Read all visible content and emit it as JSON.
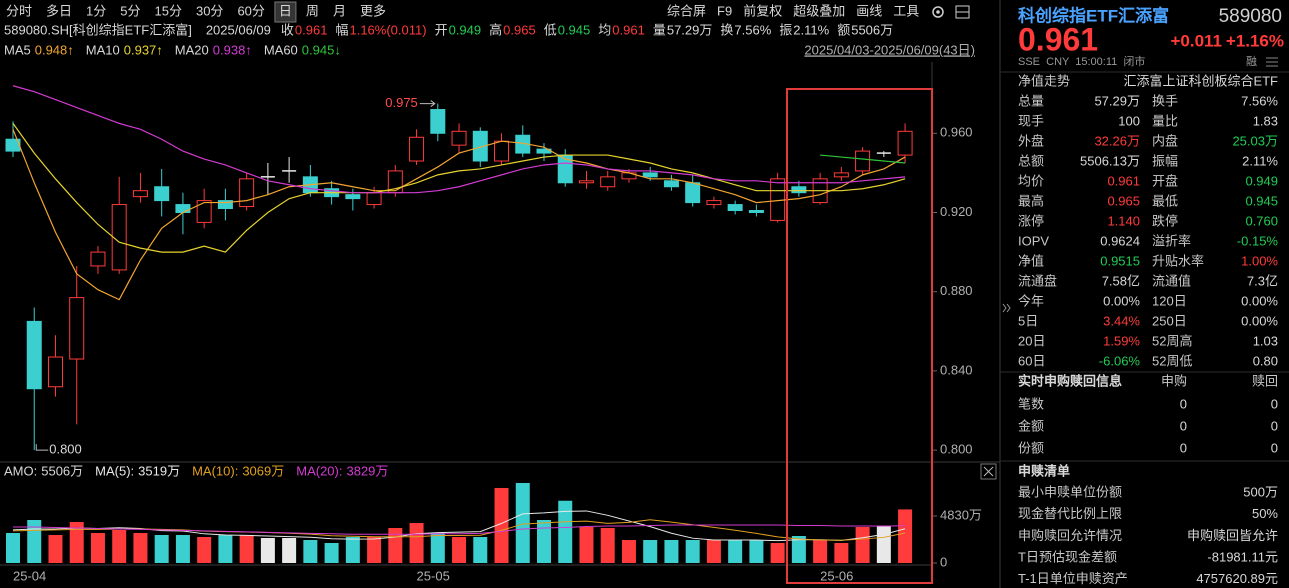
{
  "toolbar": {
    "tabs": [
      {
        "label": "分时"
      },
      {
        "label": "多日"
      },
      {
        "label": "1分"
      },
      {
        "label": "5分"
      },
      {
        "label": "15分"
      },
      {
        "label": "30分"
      },
      {
        "label": "60分"
      },
      {
        "label": "日",
        "active": true
      },
      {
        "label": "周"
      },
      {
        "label": "月"
      },
      {
        "label": "更多"
      }
    ],
    "tools": [
      "综合屏",
      "F9",
      "前复权",
      "超级叠加",
      "画线",
      "工具"
    ]
  },
  "info": {
    "symbol": "589080.SH[科创综指ETF汇添富]",
    "date": "2025/06/09",
    "fields": [
      {
        "label": "收",
        "value": "0.961",
        "color": "#ff3b3b"
      },
      {
        "label": "幅",
        "value": "1.16%(0.011)",
        "color": "#ff3b3b"
      },
      {
        "label": "开",
        "value": "0.949",
        "color": "#22cc55"
      },
      {
        "label": "高",
        "value": "0.965",
        "color": "#ff3b3b"
      },
      {
        "label": "低",
        "value": "0.945",
        "color": "#22cc55"
      },
      {
        "label": "均",
        "value": "0.961",
        "color": "#ff3b3b"
      },
      {
        "label": "量",
        "value": "57.29万",
        "color": "#d8d8d8"
      },
      {
        "label": "换",
        "value": "7.56%",
        "color": "#d8d8d8"
      },
      {
        "label": "振",
        "value": "2.11%",
        "color": "#d8d8d8"
      },
      {
        "label": "额",
        "value": "5506万",
        "color": "#d8d8d8"
      }
    ]
  },
  "chart_data": [
    {
      "type": "candlestick",
      "range_label": "2025/04/03-2025/06/09(43日)",
      "up_color": "#ff3b3b",
      "down_color": "#3ccfcf",
      "flat_color": "#e8e8e8",
      "ohlc": [
        [
          0.957,
          0.966,
          0.948,
          0.951
        ],
        [
          0.865,
          0.872,
          0.8,
          0.831
        ],
        [
          0.832,
          0.858,
          0.827,
          0.847
        ],
        [
          0.846,
          0.893,
          0.813,
          0.877
        ],
        [
          0.893,
          0.903,
          0.889,
          0.9
        ],
        [
          0.891,
          0.938,
          0.889,
          0.924
        ],
        [
          0.928,
          0.94,
          0.925,
          0.931
        ],
        [
          0.933,
          0.942,
          0.918,
          0.926
        ],
        [
          0.924,
          0.93,
          0.909,
          0.92
        ],
        [
          0.915,
          0.932,
          0.912,
          0.926
        ],
        [
          0.926,
          0.932,
          0.916,
          0.922
        ],
        [
          0.923,
          0.94,
          0.921,
          0.937
        ],
        [
          0.938,
          0.945,
          0.929,
          0.938
        ],
        [
          0.941,
          0.948,
          0.935,
          0.941
        ],
        [
          0.938,
          0.944,
          0.928,
          0.93
        ],
        [
          0.932,
          0.936,
          0.924,
          0.928
        ],
        [
          0.929,
          0.932,
          0.921,
          0.927
        ],
        [
          0.924,
          0.933,
          0.922,
          0.93
        ],
        [
          0.93,
          0.944,
          0.928,
          0.941
        ],
        [
          0.946,
          0.962,
          0.944,
          0.958
        ],
        [
          0.972,
          0.975,
          0.956,
          0.96
        ],
        [
          0.954,
          0.965,
          0.95,
          0.961
        ],
        [
          0.961,
          0.963,
          0.943,
          0.946
        ],
        [
          0.946,
          0.96,
          0.944,
          0.956
        ],
        [
          0.959,
          0.964,
          0.948,
          0.95
        ],
        [
          0.952,
          0.955,
          0.946,
          0.95
        ],
        [
          0.949,
          0.952,
          0.933,
          0.935
        ],
        [
          0.935,
          0.941,
          0.932,
          0.936
        ],
        [
          0.933,
          0.941,
          0.931,
          0.938
        ],
        [
          0.937,
          0.942,
          0.935,
          0.94
        ],
        [
          0.94,
          0.943,
          0.936,
          0.938
        ],
        [
          0.936,
          0.939,
          0.931,
          0.933
        ],
        [
          0.935,
          0.939,
          0.923,
          0.925
        ],
        [
          0.924,
          0.928,
          0.922,
          0.926
        ],
        [
          0.924,
          0.926,
          0.919,
          0.921
        ],
        [
          0.921,
          0.924,
          0.918,
          0.92
        ],
        [
          0.916,
          0.94,
          0.915,
          0.937
        ],
        [
          0.933,
          0.936,
          0.928,
          0.93
        ],
        [
          0.925,
          0.94,
          0.924,
          0.937
        ],
        [
          0.938,
          0.943,
          0.936,
          0.94
        ],
        [
          0.941,
          0.953,
          0.939,
          0.951
        ],
        [
          0.95,
          0.951,
          0.948,
          0.95
        ],
        [
          0.949,
          0.965,
          0.945,
          0.961
        ]
      ],
      "high_label": "0.975",
      "low_label": "0.800",
      "series": [
        {
          "name": "MA5",
          "legend_label": "0.948↑",
          "color": "#f2a530",
          "values": [
            0.962,
            0.935,
            0.91,
            0.889,
            0.881,
            0.876,
            0.896,
            0.912,
            0.92,
            0.925,
            0.925,
            0.926,
            0.929,
            0.933,
            0.934,
            0.935,
            0.933,
            0.931,
            0.931,
            0.937,
            0.943,
            0.95,
            0.953,
            0.956,
            0.955,
            0.953,
            0.947,
            0.945,
            0.942,
            0.94,
            0.937,
            0.937,
            0.935,
            0.932,
            0.929,
            0.925,
            0.926,
            0.927,
            0.929,
            0.933,
            0.939,
            0.942,
            0.948
          ]
        },
        {
          "name": "MA10",
          "legend_label": "0.937↑",
          "color": "#e6d42e",
          "values": [
            0.965,
            0.95,
            0.937,
            0.925,
            0.914,
            0.905,
            0.902,
            0.9,
            0.9,
            0.903,
            0.9,
            0.911,
            0.92,
            0.927,
            0.93,
            0.93,
            0.93,
            0.93,
            0.932,
            0.935,
            0.939,
            0.941,
            0.942,
            0.944,
            0.946,
            0.948,
            0.949,
            0.949,
            0.949,
            0.947,
            0.945,
            0.942,
            0.94,
            0.937,
            0.934,
            0.931,
            0.931,
            0.931,
            0.931,
            0.931,
            0.932,
            0.934,
            0.937
          ]
        },
        {
          "name": "MA20",
          "legend_label": "0.938↑",
          "color": "#d23cd2",
          "values": [
            0.984,
            0.981,
            0.977,
            0.973,
            0.969,
            0.965,
            0.962,
            0.957,
            0.951,
            0.947,
            0.944,
            0.94,
            0.936,
            0.934,
            0.932,
            0.931,
            0.93,
            0.93,
            0.93,
            0.93,
            0.931,
            0.933,
            0.936,
            0.939,
            0.942,
            0.944,
            0.945,
            0.944,
            0.942,
            0.941,
            0.941,
            0.94,
            0.939,
            0.937,
            0.936,
            0.936,
            0.935,
            0.935,
            0.935,
            0.935,
            0.936,
            0.937,
            0.938
          ]
        },
        {
          "name": "MA60",
          "legend_label": "0.945↓",
          "color": "#2fc43a",
          "values": [
            null,
            null,
            null,
            null,
            null,
            null,
            null,
            null,
            null,
            null,
            null,
            null,
            null,
            null,
            null,
            null,
            null,
            null,
            null,
            null,
            null,
            null,
            null,
            null,
            null,
            null,
            null,
            null,
            null,
            null,
            null,
            null,
            null,
            null,
            null,
            null,
            null,
            null,
            0.949,
            0.948,
            0.947,
            0.946,
            0.945
          ]
        }
      ],
      "ylim": [
        0.795,
        0.996
      ],
      "yticks": [
        {
          "value": 0.96,
          "label": "0.960"
        },
        {
          "value": 0.92,
          "label": "0.920"
        },
        {
          "value": 0.88,
          "label": "0.880"
        },
        {
          "value": 0.84,
          "label": "0.840"
        },
        {
          "value": 0.8,
          "label": "0.800"
        }
      ]
    },
    {
      "type": "bar",
      "name": "AMO:",
      "legend_label": "5506万",
      "categories": [
        "25-04",
        null,
        null,
        null,
        null,
        null,
        null,
        null,
        null,
        null,
        null,
        null,
        null,
        null,
        null,
        null,
        null,
        null,
        null,
        "25-05",
        null,
        null,
        null,
        null,
        null,
        null,
        null,
        null,
        null,
        null,
        null,
        null,
        null,
        null,
        null,
        null,
        null,
        null,
        "25-06",
        null,
        null,
        null,
        null
      ],
      "values": [
        3084,
        4420,
        2878,
        4215,
        3084,
        3392,
        3084,
        2878,
        2878,
        2673,
        2878,
        2878,
        2570,
        2570,
        2364,
        2056,
        2673,
        2673,
        3598,
        4112,
        3084,
        2673,
        2673,
        7710,
        8224,
        4420,
        6400,
        3701,
        3598,
        2364,
        2364,
        2364,
        2364,
        2364,
        2364,
        2364,
        2056,
        2776,
        2364,
        2056,
        3701,
        3804,
        5506
      ],
      "series": [
        {
          "name": "MA(5):",
          "legend_label": "3519万",
          "color": "#e8e8e8",
          "values": [
            3400,
            3500,
            3500,
            3600,
            3540,
            3620,
            3550,
            3330,
            3290,
            3000,
            2880,
            2840,
            2780,
            2710,
            2650,
            2490,
            2450,
            2470,
            2670,
            3000,
            3120,
            3170,
            3230,
            4070,
            5050,
            5150,
            5310,
            5350,
            4900,
            4320,
            3740,
            3060,
            2550,
            2360,
            2360,
            2360,
            2300,
            2390,
            2390,
            2320,
            2590,
            2940,
            3519
          ]
        },
        {
          "name": "MA(10):",
          "legend_label": "3069万",
          "color": "#e0a020",
          "values": [
            3300,
            3350,
            3400,
            3450,
            3450,
            3500,
            3500,
            3450,
            3400,
            3270,
            3220,
            3190,
            3130,
            3060,
            2970,
            2800,
            2750,
            2700,
            2700,
            2700,
            2820,
            2820,
            2850,
            3350,
            4000,
            4130,
            4240,
            4300,
            4070,
            4180,
            4450,
            4200,
            3930,
            3660,
            3360,
            3040,
            2690,
            2470,
            2370,
            2340,
            2460,
            2640,
            3069
          ]
        },
        {
          "name": "MA(20):",
          "legend_label": "3829万",
          "color": "#d23cd2",
          "values": [
            3700,
            3700,
            3650,
            3600,
            3550,
            3500,
            3450,
            3400,
            3350,
            3300,
            3250,
            3200,
            3150,
            3100,
            3050,
            3000,
            2950,
            2950,
            2950,
            2950,
            3000,
            3000,
            3050,
            3250,
            3500,
            3600,
            3650,
            3750,
            3800,
            3800,
            3850,
            3900,
            3900,
            3900,
            3900,
            3900,
            3900,
            3850,
            3850,
            3800,
            3800,
            3800,
            3829
          ]
        }
      ],
      "ylim": [
        0,
        8530
      ],
      "yticks": [
        {
          "value": 4830,
          "label": "4830万"
        },
        0
      ]
    }
  ],
  "side_panel": {
    "name": "科创综指ETF汇添富",
    "code": "589080",
    "price": "0.961",
    "change": "+0.011",
    "change_pct": "+1.16%",
    "price_color": "#ff3b3b",
    "status": "SSE  CNY  15:00:11  闭市",
    "badge": "融",
    "nav_row": {
      "label": "净值走势",
      "value": "汇添富上证科创板综合ETF"
    },
    "stats": [
      {
        "label": "总量",
        "value": "57.29万",
        "label2": "换手",
        "value2": "7.56%"
      },
      {
        "label": "现手",
        "value": "100",
        "label2": "量比",
        "value2": "1.83"
      },
      {
        "label": "外盘",
        "value": "32.26万",
        "color": "#ff3b3b",
        "label2": "内盘",
        "value2": "25.03万",
        "color2": "#22cc55"
      },
      {
        "label": "总额",
        "value": "5506.13万",
        "label2": "振幅",
        "value2": "2.11%"
      },
      {
        "label": "均价",
        "value": "0.961",
        "color": "#ff3b3b",
        "label2": "开盘",
        "value2": "0.949",
        "color2": "#22cc55"
      },
      {
        "label": "最高",
        "value": "0.965",
        "color": "#ff3b3b",
        "label2": "最低",
        "value2": "0.945",
        "color2": "#22cc55"
      },
      {
        "label": "涨停",
        "value": "1.140",
        "color": "#ff3b3b",
        "label2": "跌停",
        "value2": "0.760",
        "color2": "#22cc55"
      },
      {
        "label": "IOPV",
        "value": "0.9624",
        "label2": "溢折率",
        "value2": "-0.15%",
        "color2": "#22cc55"
      },
      {
        "label": "净值",
        "value": "0.9515",
        "color": "#22cc55",
        "label2": "升贴水率",
        "value2": "1.00%",
        "color2": "#ff3b3b"
      },
      {
        "label": "流通盘",
        "value": "7.58亿",
        "label2": "流通值",
        "value2": "7.3亿"
      },
      {
        "label": "今年",
        "value": "0.00%",
        "label2": "120日",
        "value2": "0.00%"
      },
      {
        "label": "5日",
        "value": "3.44%",
        "color": "#ff3b3b",
        "label2": "250日",
        "value2": "0.00%"
      },
      {
        "label": "20日",
        "value": "1.59%",
        "color": "#ff3b3b",
        "label2": "52周高",
        "value2": "1.03"
      },
      {
        "label": "60日",
        "value": "-6.06%",
        "color": "#22cc55",
        "label2": "52周低",
        "value2": "0.80"
      }
    ],
    "subscription": {
      "title": "实时申购赎回信息",
      "columns": [
        "申购",
        "赎回"
      ],
      "rows": [
        {
          "label": "笔数",
          "values": [
            "0",
            "0"
          ]
        },
        {
          "label": "金额",
          "values": [
            "0",
            "0"
          ]
        },
        {
          "label": "份额",
          "values": [
            "0",
            "0"
          ]
        }
      ]
    },
    "list": {
      "title": "申赎清单",
      "rows": [
        {
          "label": "最小申赎单位份额",
          "value": "500万"
        },
        {
          "label": "现金替代比例上限",
          "value": "50%"
        },
        {
          "label": "申购赎回允许情况",
          "value": "申购赎回皆允许"
        },
        {
          "label": "T日预估现金差额",
          "value": "-81981.11元"
        },
        {
          "label": "T-1日单位申赎资产",
          "value": "4757620.89元"
        }
      ]
    }
  }
}
